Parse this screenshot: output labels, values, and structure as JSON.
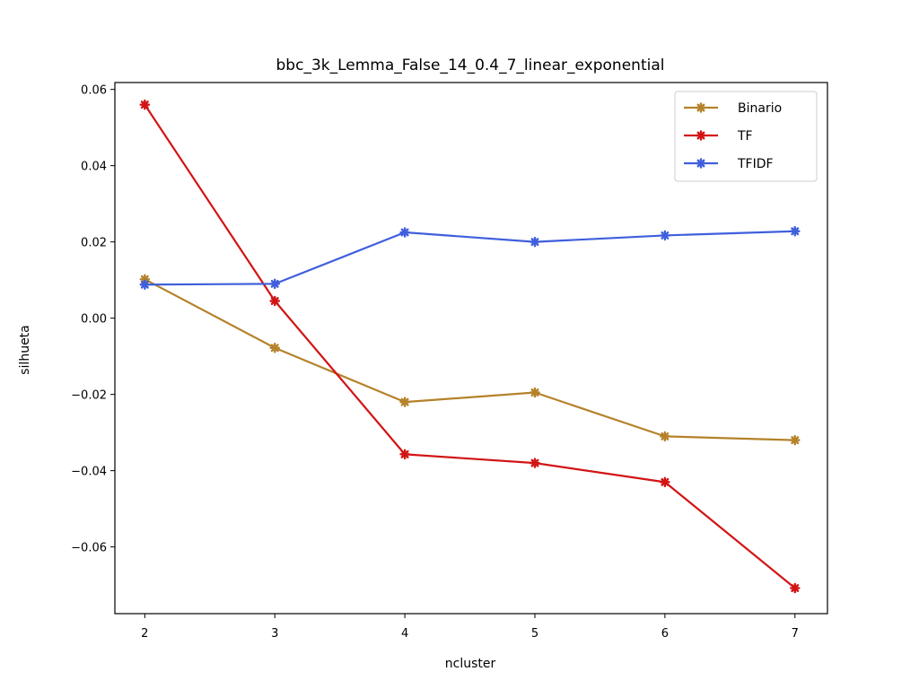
{
  "chart_data": {
    "type": "line",
    "title": "bbc_3k_Lemma_False_14_0.4_7_linear_exponential",
    "xlabel": "ncluster",
    "ylabel": "silhueta",
    "x": [
      2,
      3,
      4,
      5,
      6,
      7
    ],
    "xlim": [
      1.77,
      7.25
    ],
    "ylim": [
      -0.0775,
      0.0618
    ],
    "xticks": [
      2,
      3,
      4,
      5,
      6,
      7
    ],
    "xtick_labels": [
      "2",
      "3",
      "4",
      "5",
      "6",
      "7"
    ],
    "yticks": [
      0.06,
      0.04,
      0.02,
      0.0,
      -0.02,
      -0.04,
      -0.06
    ],
    "ytick_labels": [
      "0.06",
      "0.04",
      "0.02",
      "0.00",
      "−0.02",
      "−0.04",
      "−0.06"
    ],
    "grid": false,
    "legend_position": "top-right",
    "series": [
      {
        "name": "Binario",
        "color": "#b5822a",
        "values": [
          0.0102,
          -0.0078,
          -0.022,
          -0.0195,
          -0.031,
          -0.032
        ]
      },
      {
        "name": "TF",
        "color": "#d21414",
        "values": [
          0.056,
          0.0045,
          -0.0357,
          -0.038,
          -0.043,
          -0.0708
        ]
      },
      {
        "name": "TFIDF",
        "color": "#3f5fdc",
        "values": [
          0.0088,
          0.009,
          0.0225,
          0.02,
          0.0217,
          0.0228
        ]
      }
    ]
  }
}
